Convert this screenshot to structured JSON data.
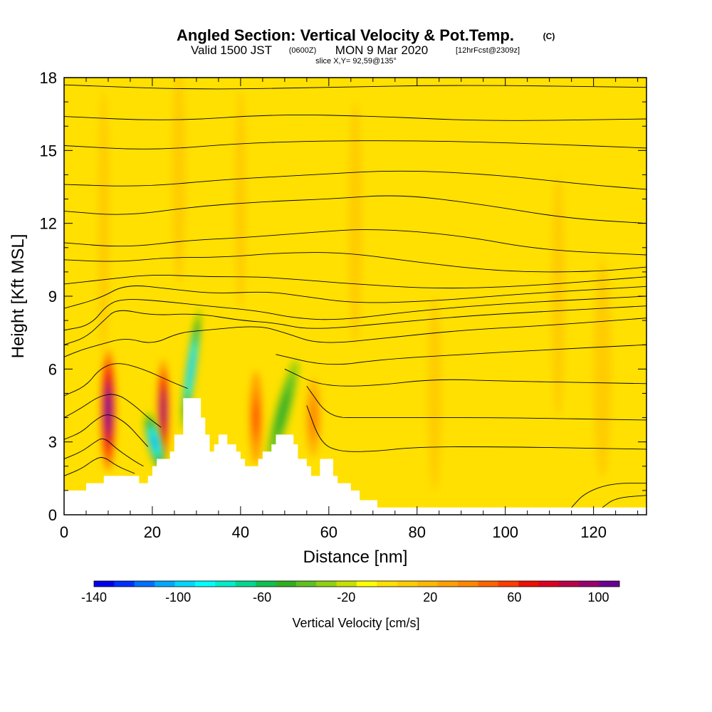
{
  "header": {
    "title": "Angled Section: Vertical Velocity & Pot.Temp.",
    "title_suffix": "(C)",
    "valid_prefix": "Valid 1500 JST",
    "valid_zulu": "(0600Z)",
    "valid_date": "MON 9 Mar 2020",
    "forecast": "[12hrFcst@2309z]",
    "slice": "slice X,Y= 92,59@135°"
  },
  "chart_data": {
    "type": "heatmap",
    "xlabel": "Distance [nm]",
    "ylabel": "Height [Kft MSL]",
    "xlim": [
      0,
      132
    ],
    "ylim": [
      0,
      18
    ],
    "x_ticks": [
      0,
      20,
      40,
      60,
      80,
      100,
      120
    ],
    "y_ticks": [
      0,
      3,
      6,
      9,
      12,
      15,
      18
    ],
    "background_color": "#ffe000",
    "terrain": [
      [
        0,
        1
      ],
      [
        5,
        1
      ],
      [
        5,
        1.3
      ],
      [
        9,
        1.3
      ],
      [
        9,
        1.6
      ],
      [
        17,
        1.6
      ],
      [
        17,
        1.3
      ],
      [
        19,
        1.3
      ],
      [
        19,
        1.6
      ],
      [
        20,
        1.6
      ],
      [
        20,
        2.0
      ],
      [
        21,
        2.0
      ],
      [
        21,
        2.3
      ],
      [
        24,
        2.3
      ],
      [
        24,
        2.6
      ],
      [
        25,
        2.6
      ],
      [
        25,
        3.3
      ],
      [
        27,
        3.3
      ],
      [
        27,
        4.8
      ],
      [
        31,
        4.8
      ],
      [
        31,
        4.0
      ],
      [
        32,
        4.0
      ],
      [
        32,
        3.3
      ],
      [
        33,
        3.3
      ],
      [
        33,
        2.6
      ],
      [
        34,
        2.6
      ],
      [
        34,
        2.9
      ],
      [
        35,
        2.9
      ],
      [
        35,
        3.3
      ],
      [
        37,
        3.3
      ],
      [
        37,
        2.9
      ],
      [
        39,
        2.9
      ],
      [
        39,
        2.6
      ],
      [
        40,
        2.6
      ],
      [
        40,
        2.3
      ],
      [
        41,
        2.3
      ],
      [
        41,
        2.0
      ],
      [
        44,
        2.0
      ],
      [
        44,
        2.3
      ],
      [
        45,
        2.3
      ],
      [
        45,
        2.6
      ],
      [
        47,
        2.6
      ],
      [
        47,
        2.9
      ],
      [
        48,
        2.9
      ],
      [
        48,
        3.3
      ],
      [
        52,
        3.3
      ],
      [
        52,
        2.9
      ],
      [
        53,
        2.9
      ],
      [
        53,
        2.3
      ],
      [
        55,
        2.3
      ],
      [
        55,
        2.0
      ],
      [
        56,
        2.0
      ],
      [
        56,
        1.6
      ],
      [
        58,
        1.6
      ],
      [
        58,
        2.3
      ],
      [
        61,
        2.3
      ],
      [
        61,
        1.6
      ],
      [
        62,
        1.6
      ],
      [
        62,
        1.3
      ],
      [
        65,
        1.3
      ],
      [
        65,
        1.0
      ],
      [
        67,
        1.0
      ],
      [
        67,
        0.6
      ],
      [
        71,
        0.6
      ],
      [
        71,
        0.3
      ],
      [
        132,
        0.3
      ]
    ],
    "velocity_cells": [
      {
        "x": 10,
        "y": 4.3,
        "w": 3.5,
        "h": 5.0,
        "value": 110
      },
      {
        "x": 22.5,
        "y": 4.3,
        "w": 3.0,
        "h": 4.2,
        "value": 100
      },
      {
        "x": 43.5,
        "y": 4.0,
        "w": 3.0,
        "h": 3.8,
        "value": 60
      },
      {
        "x": 56.5,
        "y": 4.0,
        "w": 3.5,
        "h": 3.2,
        "value": 40
      },
      {
        "x": 20.5,
        "y": 3.0,
        "w": 3.5,
        "h": 2.5,
        "value": -110,
        "tilt": -14
      },
      {
        "x": 28.8,
        "y": 6.0,
        "w": 2.4,
        "h": 5.0,
        "value": -100,
        "tilt": 8
      },
      {
        "x": 49.5,
        "y": 4.2,
        "w": 3.5,
        "h": 4.5,
        "value": -50,
        "tilt": 15
      },
      {
        "x": 9,
        "y": 12,
        "w": 2.5,
        "h": 11,
        "value": 10
      },
      {
        "x": 26,
        "y": 14,
        "w": 3,
        "h": 9,
        "value": 10
      },
      {
        "x": 40,
        "y": 13,
        "w": 2.5,
        "h": 9,
        "value": 10
      },
      {
        "x": 66,
        "y": 12,
        "w": 3,
        "h": 10,
        "value": 10
      },
      {
        "x": 84,
        "y": 5,
        "w": 3,
        "h": 8,
        "value": 10
      },
      {
        "x": 112,
        "y": 9,
        "w": 3,
        "h": 10,
        "value": 10
      },
      {
        "x": 122,
        "y": 6,
        "w": 4,
        "h": 9,
        "value": 10
      }
    ],
    "theta_contours": [
      {
        "pts": [
          [
            0,
            4.9
          ],
          [
            5,
            5.3
          ],
          [
            8,
            6.0
          ],
          [
            12,
            6.3
          ],
          [
            18,
            6.0
          ],
          [
            24,
            5.5
          ],
          [
            28,
            5.2
          ]
        ]
      },
      {
        "pts": [
          [
            0,
            4.0
          ],
          [
            4,
            4.4
          ],
          [
            8,
            4.9
          ],
          [
            12,
            5.0
          ],
          [
            16,
            4.5
          ],
          [
            19,
            4.0
          ],
          [
            22,
            3.6
          ]
        ]
      },
      {
        "pts": [
          [
            0,
            3.1
          ],
          [
            4,
            3.4
          ],
          [
            7,
            3.9
          ],
          [
            10,
            4.2
          ],
          [
            14,
            3.8
          ],
          [
            17,
            3.2
          ],
          [
            19,
            2.8
          ]
        ]
      },
      {
        "pts": [
          [
            0,
            2.3
          ],
          [
            4,
            2.6
          ],
          [
            7,
            3.0
          ],
          [
            9,
            3.2
          ],
          [
            12,
            2.7
          ],
          [
            16,
            2.2
          ],
          [
            18,
            2.0
          ]
        ]
      },
      {
        "pts": [
          [
            0,
            1.6
          ],
          [
            4,
            1.9
          ],
          [
            7,
            2.3
          ],
          [
            9,
            2.4
          ],
          [
            12,
            2.0
          ],
          [
            16,
            1.7
          ]
        ]
      },
      {
        "pts": [
          [
            55,
            4.5
          ],
          [
            58,
            3.0
          ],
          [
            62,
            2.6
          ],
          [
            70,
            2.6
          ],
          [
            80,
            2.8
          ],
          [
            100,
            2.8
          ],
          [
            132,
            2.7
          ]
        ]
      },
      {
        "pts": [
          [
            55,
            5.3
          ],
          [
            60,
            4.0
          ],
          [
            68,
            4.0
          ],
          [
            80,
            4.0
          ],
          [
            100,
            4.0
          ],
          [
            132,
            3.9
          ]
        ]
      },
      {
        "pts": [
          [
            50,
            6.0
          ],
          [
            58,
            5.3
          ],
          [
            70,
            5.3
          ],
          [
            84,
            5.6
          ],
          [
            100,
            5.5
          ],
          [
            132,
            5.4
          ]
        ]
      },
      {
        "pts": [
          [
            48,
            6.6
          ],
          [
            60,
            6.1
          ],
          [
            72,
            6.4
          ],
          [
            90,
            6.6
          ],
          [
            110,
            6.8
          ],
          [
            132,
            7.0
          ]
        ]
      },
      {
        "pts": [
          [
            0,
            6.5
          ],
          [
            4,
            6.8
          ],
          [
            8,
            7.0
          ],
          [
            14,
            7.3
          ],
          [
            20,
            7.0
          ],
          [
            26,
            7.5
          ],
          [
            32,
            7.6
          ],
          [
            44,
            7.8
          ],
          [
            50,
            7.5
          ],
          [
            58,
            7.0
          ],
          [
            74,
            7.3
          ],
          [
            90,
            7.6
          ],
          [
            110,
            7.8
          ],
          [
            132,
            8.1
          ]
        ]
      },
      {
        "pts": [
          [
            0,
            7.0
          ],
          [
            5,
            7.3
          ],
          [
            9,
            8.0
          ],
          [
            12,
            8.5
          ],
          [
            20,
            8.2
          ],
          [
            30,
            8.3
          ],
          [
            40,
            8.0
          ],
          [
            48,
            7.9
          ],
          [
            56,
            7.6
          ],
          [
            74,
            7.9
          ],
          [
            92,
            8.2
          ],
          [
            112,
            8.4
          ],
          [
            132,
            8.6
          ]
        ]
      },
      {
        "pts": [
          [
            0,
            7.6
          ],
          [
            6,
            7.8
          ],
          [
            10,
            8.7
          ],
          [
            14,
            8.9
          ],
          [
            22,
            8.8
          ],
          [
            32,
            8.6
          ],
          [
            44,
            8.4
          ],
          [
            52,
            8.1
          ],
          [
            62,
            8.0
          ],
          [
            80,
            8.4
          ],
          [
            100,
            8.7
          ],
          [
            132,
            9.0
          ]
        ]
      },
      {
        "pts": [
          [
            0,
            8.5
          ],
          [
            8,
            8.9
          ],
          [
            14,
            9.5
          ],
          [
            24,
            9.3
          ],
          [
            34,
            9.1
          ],
          [
            46,
            9.2
          ],
          [
            54,
            9.0
          ],
          [
            66,
            8.7
          ],
          [
            84,
            8.8
          ],
          [
            104,
            9.1
          ],
          [
            132,
            9.4
          ]
        ]
      },
      {
        "pts": [
          [
            0,
            9.5
          ],
          [
            10,
            9.7
          ],
          [
            20,
            9.9
          ],
          [
            32,
            9.8
          ],
          [
            44,
            9.8
          ],
          [
            52,
            9.7
          ],
          [
            66,
            9.5
          ],
          [
            84,
            9.3
          ],
          [
            104,
            9.4
          ],
          [
            132,
            9.8
          ]
        ]
      },
      {
        "pts": [
          [
            0,
            10.5
          ],
          [
            12,
            10.4
          ],
          [
            24,
            10.6
          ],
          [
            36,
            10.6
          ],
          [
            50,
            10.8
          ],
          [
            64,
            10.8
          ],
          [
            80,
            10.4
          ],
          [
            100,
            10.0
          ],
          [
            120,
            10.0
          ],
          [
            132,
            10.2
          ]
        ]
      },
      {
        "pts": [
          [
            0,
            11.2
          ],
          [
            14,
            11.0
          ],
          [
            28,
            11.3
          ],
          [
            40,
            11.4
          ],
          [
            54,
            11.6
          ],
          [
            70,
            11.8
          ],
          [
            90,
            11.5
          ],
          [
            108,
            10.9
          ],
          [
            132,
            10.7
          ]
        ]
      },
      {
        "pts": [
          [
            0,
            12.5
          ],
          [
            14,
            12.3
          ],
          [
            30,
            12.7
          ],
          [
            46,
            12.9
          ],
          [
            60,
            13.0
          ],
          [
            76,
            13.2
          ],
          [
            94,
            12.8
          ],
          [
            114,
            12.2
          ],
          [
            132,
            12.0
          ]
        ]
      },
      {
        "pts": [
          [
            0,
            13.6
          ],
          [
            18,
            13.5
          ],
          [
            36,
            13.8
          ],
          [
            56,
            14.0
          ],
          [
            76,
            14.2
          ],
          [
            98,
            14.0
          ],
          [
            118,
            13.6
          ],
          [
            132,
            13.4
          ]
        ]
      },
      {
        "pts": [
          [
            0,
            15.2
          ],
          [
            20,
            15.0
          ],
          [
            40,
            15.3
          ],
          [
            60,
            15.4
          ],
          [
            82,
            15.4
          ],
          [
            104,
            15.3
          ],
          [
            132,
            15.1
          ]
        ]
      },
      {
        "pts": [
          [
            0,
            16.4
          ],
          [
            24,
            16.2
          ],
          [
            48,
            16.5
          ],
          [
            72,
            16.4
          ],
          [
            96,
            16.2
          ],
          [
            132,
            16.3
          ]
        ]
      },
      {
        "pts": [
          [
            0,
            17.7
          ],
          [
            30,
            17.5
          ],
          [
            60,
            17.6
          ],
          [
            90,
            17.7
          ],
          [
            132,
            17.6
          ]
        ]
      },
      {
        "pts": [
          [
            115,
            0.3
          ],
          [
            118,
            0.9
          ],
          [
            124,
            1.3
          ],
          [
            132,
            1.3
          ]
        ]
      },
      {
        "pts": [
          [
            122,
            0.3
          ],
          [
            125,
            0.7
          ],
          [
            132,
            0.8
          ]
        ]
      }
    ],
    "colorbar": {
      "label": "Vertical Velocity [cm/s]",
      "min": -140,
      "max": 110,
      "ticks": [
        -140,
        -100,
        -60,
        -20,
        20,
        60,
        100
      ],
      "colors": [
        "#0000ee",
        "#0030ff",
        "#0070ff",
        "#00a8ff",
        "#00d8ff",
        "#00ffff",
        "#00eec8",
        "#00d890",
        "#10c050",
        "#30b020",
        "#60c020",
        "#90d010",
        "#c8e000",
        "#ffff00",
        "#ffe000",
        "#ffcc00",
        "#ffb800",
        "#ffa000",
        "#ff8800",
        "#ff6400",
        "#ff3c00",
        "#ee1000",
        "#dd0020",
        "#b80048",
        "#980070",
        "#6a0090"
      ]
    }
  }
}
